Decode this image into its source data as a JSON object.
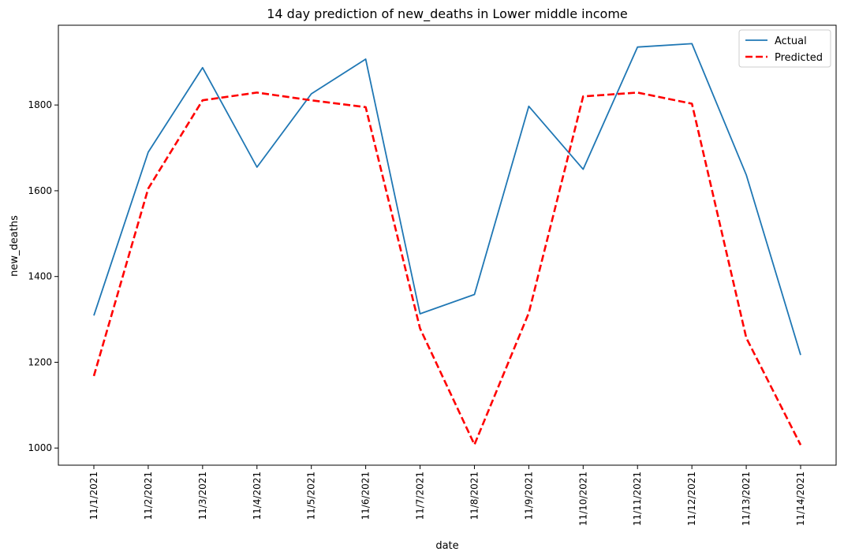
{
  "chart_data": {
    "type": "line",
    "title": "14 day prediction of new_deaths in Lower middle income",
    "xlabel": "date",
    "ylabel": "new_deaths",
    "categories": [
      "11/1/2021",
      "11/2/2021",
      "11/3/2021",
      "11/4/2021",
      "11/5/2021",
      "11/6/2021",
      "11/7/2021",
      "11/8/2021",
      "11/9/2021",
      "11/10/2021",
      "11/11/2021",
      "11/12/2021",
      "11/13/2021",
      "11/14/2021"
    ],
    "ylim": [
      960,
      1986
    ],
    "yticks": [
      1000,
      1200,
      1400,
      1600,
      1800
    ],
    "grid": false,
    "legend_position": "top-right",
    "series": [
      {
        "name": "Actual",
        "color": "#1f77b4",
        "style": "solid",
        "values": [
          1309,
          1690,
          1887,
          1655,
          1826,
          1907,
          1313,
          1358,
          1797,
          1650,
          1935,
          1943,
          1637,
          1217
        ]
      },
      {
        "name": "Predicted",
        "color": "#ff0000",
        "style": "dashed",
        "values": [
          1168,
          1605,
          1811,
          1829,
          1811,
          1795,
          1279,
          1008,
          1315,
          1820,
          1829,
          1803,
          1257,
          1007
        ]
      }
    ]
  }
}
